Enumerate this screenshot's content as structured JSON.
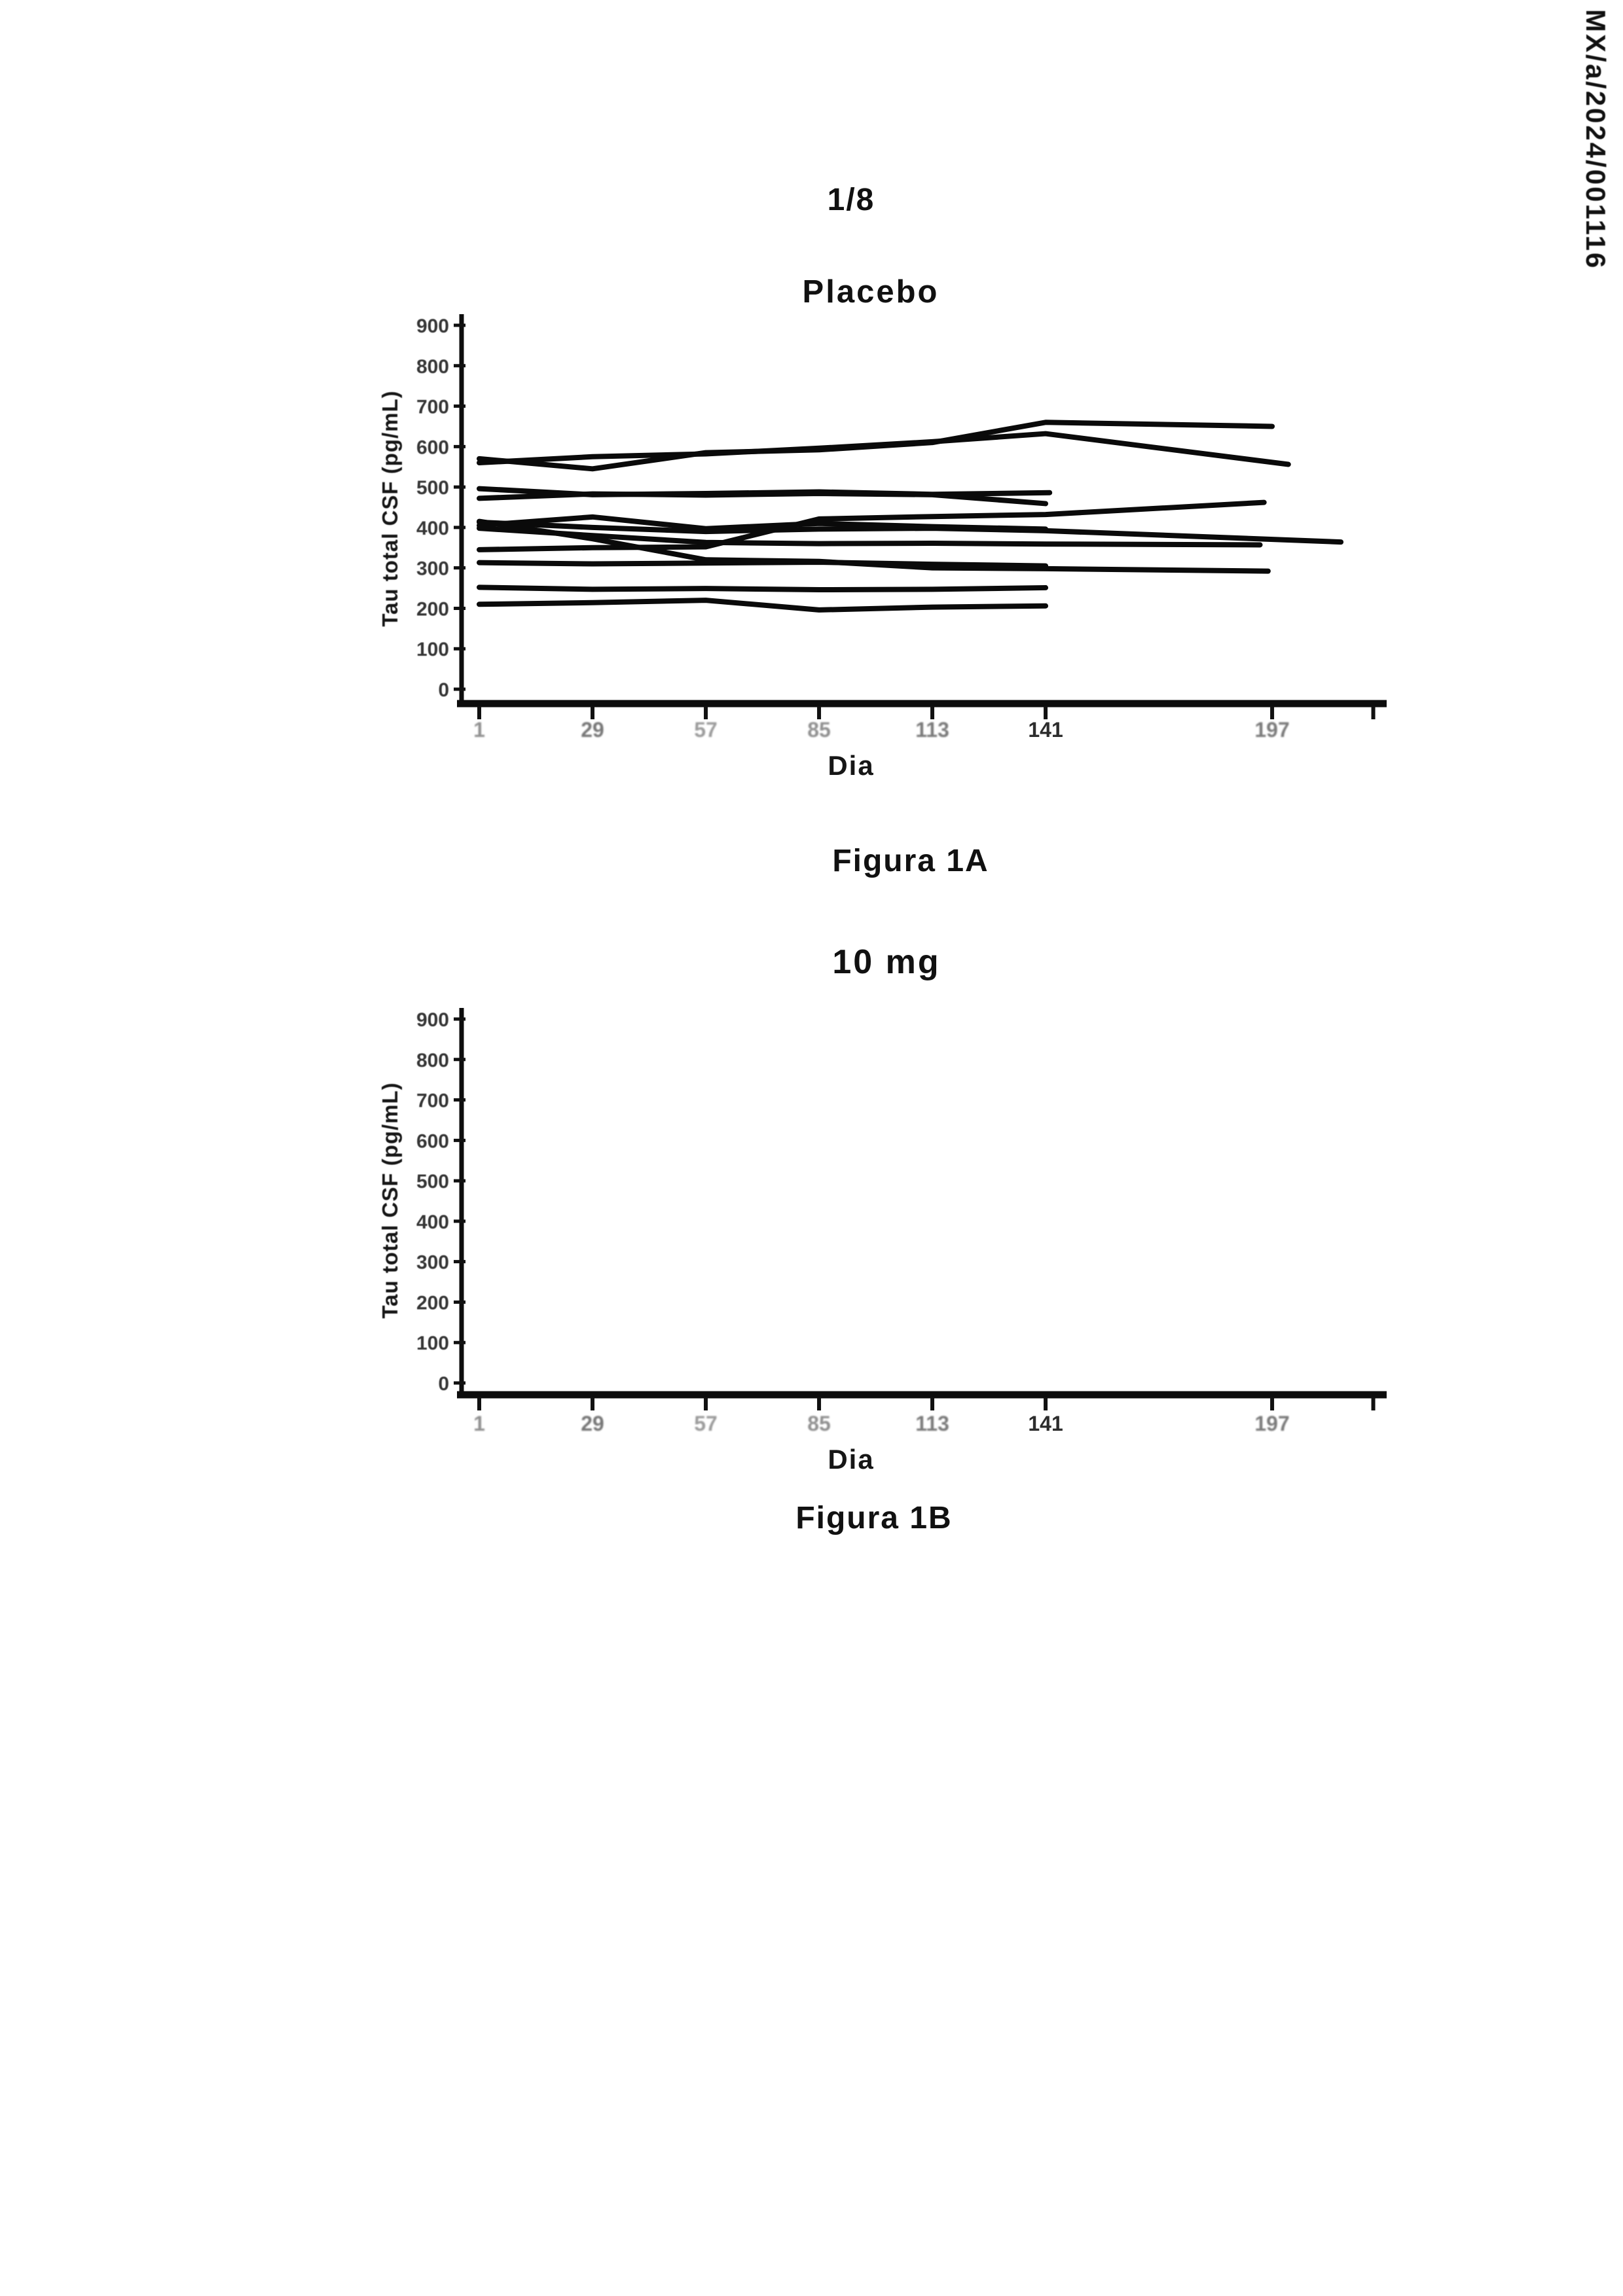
{
  "page": {
    "number": "1/8",
    "patent_number": "MX/a/2024/001116"
  },
  "figures": [
    {
      "title": "Placebo",
      "caption": "Figura 1A"
    },
    {
      "title": "10 mg",
      "caption": "Figura 1B"
    }
  ],
  "chart_data": [
    {
      "type": "line",
      "title": "Placebo",
      "xlabel": "Dia",
      "ylabel": "Tau total CSF  (pg/mL)",
      "ylim": [
        0,
        900
      ],
      "xlim": [
        -10,
        228
      ],
      "grid": false,
      "legend": "none",
      "yticks": [
        0,
        100,
        200,
        300,
        400,
        500,
        600,
        700,
        800,
        900
      ],
      "xticks": [
        {
          "day": 1,
          "label": "1"
        },
        {
          "day": 29,
          "label": "29"
        },
        {
          "day": 57,
          "label": "57"
        },
        {
          "day": 85,
          "label": "85"
        },
        {
          "day": 113,
          "label": "113"
        },
        {
          "day": 141,
          "label": "141"
        },
        {
          "day": 197,
          "label": "197"
        },
        {
          "day": 222,
          "label": ""
        }
      ],
      "series": [
        {
          "name": "paciente-01",
          "points": [
            [
              1,
              570
            ],
            [
              29,
              545
            ],
            [
              57,
              585
            ],
            [
              85,
              592
            ],
            [
              113,
              610
            ],
            [
              141,
              660
            ],
            [
              197,
              650
            ]
          ]
        },
        {
          "name": "paciente-02",
          "points": [
            [
              1,
              560
            ],
            [
              29,
              575
            ],
            [
              57,
              582
            ],
            [
              85,
              596
            ],
            [
              113,
              612
            ],
            [
              141,
              632
            ],
            [
              201,
              556
            ]
          ]
        },
        {
          "name": "paciente-03",
          "points": [
            [
              1,
              496
            ],
            [
              29,
              481
            ],
            [
              57,
              484
            ],
            [
              85,
              488
            ],
            [
              113,
              482
            ],
            [
              142,
              486
            ]
          ]
        },
        {
          "name": "paciente-04",
          "points": [
            [
              1,
              472
            ],
            [
              29,
              483
            ],
            [
              57,
              480
            ],
            [
              85,
              484
            ],
            [
              113,
              481
            ],
            [
              141,
              459
            ]
          ]
        },
        {
          "name": "paciente-05",
          "points": [
            [
              1,
              345
            ],
            [
              29,
              350
            ],
            [
              57,
              352
            ],
            [
              85,
              421
            ],
            [
              113,
              427
            ],
            [
              141,
              432
            ],
            [
              195,
              462
            ]
          ]
        },
        {
          "name": "paciente-06",
          "points": [
            [
              1,
              415
            ],
            [
              29,
              372
            ],
            [
              57,
              320
            ],
            [
              85,
              316
            ],
            [
              113,
              300
            ],
            [
              141,
              298
            ],
            [
              196,
              292
            ]
          ]
        },
        {
          "name": "paciente-07",
          "points": [
            [
              1,
              405
            ],
            [
              29,
              426
            ],
            [
              57,
              397
            ],
            [
              85,
              410
            ],
            [
              113,
              402
            ],
            [
              141,
              396
            ]
          ]
        },
        {
          "name": "paciente-08",
          "points": [
            [
              1,
              413
            ],
            [
              29,
              400
            ],
            [
              57,
              390
            ],
            [
              85,
              396
            ],
            [
              113,
              398
            ],
            [
              141,
              392
            ],
            [
              214,
              364
            ]
          ]
        },
        {
          "name": "paciente-09",
          "points": [
            [
              1,
              398
            ],
            [
              29,
              380
            ],
            [
              57,
              363
            ],
            [
              85,
              360
            ],
            [
              113,
              361
            ],
            [
              141,
              359
            ],
            [
              194,
              357
            ]
          ]
        },
        {
          "name": "paciente-10",
          "points": [
            [
              1,
              313
            ],
            [
              29,
              310
            ],
            [
              57,
              312
            ],
            [
              85,
              314
            ],
            [
              113,
              309
            ],
            [
              141,
              305
            ]
          ]
        },
        {
          "name": "paciente-11",
          "points": [
            [
              1,
              252
            ],
            [
              29,
              247
            ],
            [
              57,
              249
            ],
            [
              85,
              246
            ],
            [
              113,
              247
            ],
            [
              141,
              251
            ]
          ]
        },
        {
          "name": "paciente-12",
          "points": [
            [
              1,
              210
            ],
            [
              29,
              214
            ],
            [
              57,
              220
            ],
            [
              85,
              196
            ],
            [
              113,
              203
            ],
            [
              141,
              206
            ]
          ]
        }
      ]
    },
    {
      "type": "line",
      "title": "10 mg",
      "xlabel": "Dia",
      "ylabel": "Tau total CSF  (pg/mL)",
      "ylim": [
        0,
        900
      ],
      "xlim": [
        -10,
        228
      ],
      "grid": false,
      "legend": "none",
      "yticks": [
        0,
        100,
        200,
        300,
        400,
        500,
        600,
        700,
        800,
        900
      ],
      "xticks": [
        {
          "day": 1,
          "label": "1"
        },
        {
          "day": 29,
          "label": "29"
        },
        {
          "day": 57,
          "label": "57"
        },
        {
          "day": 85,
          "label": "85"
        },
        {
          "day": 113,
          "label": "113"
        },
        {
          "day": 141,
          "label": "141"
        },
        {
          "day": 197,
          "label": "197"
        },
        {
          "day": 222,
          "label": ""
        }
      ],
      "series": []
    }
  ]
}
